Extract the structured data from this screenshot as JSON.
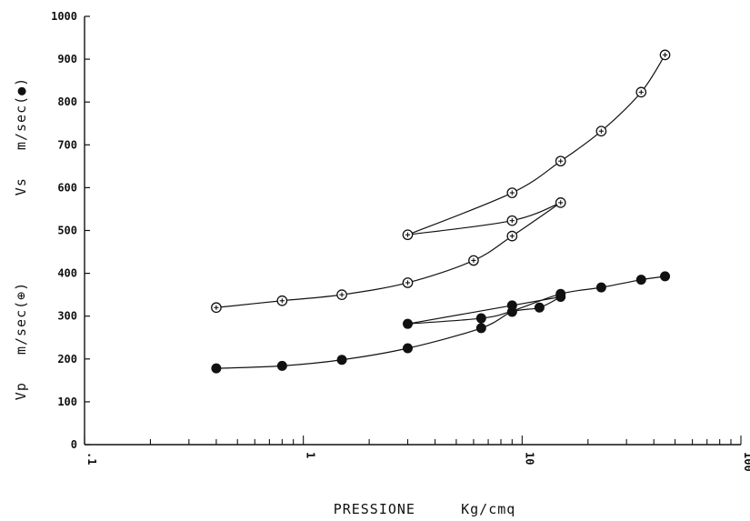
{
  "chart_data": {
    "type": "scatter",
    "title": "",
    "xlabel": "PRESSIONE     Kg/cmq",
    "ylabel_vs": "Vs   m/sec(●)",
    "ylabel_vp": "Vp   m/sec(⊕)",
    "x_scale": "log",
    "xlim": [
      0.1,
      100
    ],
    "ylim": [
      0,
      1000
    ],
    "x_tick_labels": [
      {
        "value": 0.1,
        "label": ".1"
      },
      {
        "value": 1,
        "label": "1"
      },
      {
        "value": 10,
        "label": "10"
      },
      {
        "value": 100,
        "label": "100"
      }
    ],
    "y_ticks": [
      0,
      100,
      200,
      300,
      400,
      500,
      600,
      700,
      800,
      900,
      1000
    ],
    "y_tick_labels": [
      "0",
      "100",
      "200",
      "300",
      "400",
      "500",
      "600",
      "700",
      "800",
      "900",
      "1000"
    ],
    "grid": false,
    "series": [
      {
        "marker": "circle-plus",
        "color": "#111111",
        "points": [
          {
            "x": 0.4,
            "y": 320
          },
          {
            "x": 0.8,
            "y": 336
          },
          {
            "x": 1.5,
            "y": 350
          },
          {
            "x": 3.0,
            "y": 378
          },
          {
            "x": 6.0,
            "y": 430
          },
          {
            "x": 9.0,
            "y": 487
          },
          {
            "x": 15.0,
            "y": 565
          },
          {
            "x": 9.0,
            "y": 523
          },
          {
            "x": 3.0,
            "y": 490
          },
          {
            "x": 9.0,
            "y": 588
          },
          {
            "x": 15.0,
            "y": 662
          },
          {
            "x": 23.0,
            "y": 732
          },
          {
            "x": 35.0,
            "y": 823
          },
          {
            "x": 45.0,
            "y": 910
          }
        ],
        "curves": [
          [
            [
              0.4,
              320
            ],
            [
              0.8,
              336
            ],
            [
              1.5,
              350
            ],
            [
              3.0,
              378
            ],
            [
              6.0,
              430
            ],
            [
              9.0,
              487
            ],
            [
              15.0,
              565
            ]
          ],
          [
            [
              15.0,
              565
            ],
            [
              9.0,
              523
            ],
            [
              3.0,
              490
            ]
          ],
          [
            [
              3.0,
              490
            ],
            [
              9.0,
              588
            ],
            [
              15.0,
              662
            ],
            [
              23.0,
              732
            ],
            [
              35.0,
              823
            ],
            [
              45.0,
              910
            ]
          ]
        ]
      },
      {
        "marker": "filled-circle",
        "color": "#111111",
        "points": [
          {
            "x": 0.4,
            "y": 178
          },
          {
            "x": 0.8,
            "y": 184
          },
          {
            "x": 1.5,
            "y": 198
          },
          {
            "x": 3.0,
            "y": 225
          },
          {
            "x": 6.5,
            "y": 272
          },
          {
            "x": 9.0,
            "y": 310
          },
          {
            "x": 12.0,
            "y": 320
          },
          {
            "x": 15.0,
            "y": 345
          },
          {
            "x": 9.0,
            "y": 325
          },
          {
            "x": 6.5,
            "y": 295
          },
          {
            "x": 3.0,
            "y": 282
          },
          {
            "x": 15.0,
            "y": 352
          },
          {
            "x": 23.0,
            "y": 367
          },
          {
            "x": 35.0,
            "y": 385
          },
          {
            "x": 45.0,
            "y": 393
          }
        ],
        "curves": [
          [
            [
              0.4,
              178
            ],
            [
              0.8,
              184
            ],
            [
              1.5,
              198
            ],
            [
              3.0,
              225
            ],
            [
              6.5,
              272
            ],
            [
              9.0,
              310
            ],
            [
              12.0,
              320
            ],
            [
              15.0,
              345
            ]
          ],
          [
            [
              15.0,
              345
            ],
            [
              9.0,
              325
            ],
            [
              3.0,
              282
            ]
          ],
          [
            [
              3.0,
              282
            ],
            [
              6.5,
              295
            ],
            [
              9.0,
              312
            ],
            [
              15.0,
              352
            ],
            [
              23.0,
              367
            ],
            [
              35.0,
              385
            ],
            [
              45.0,
              393
            ]
          ]
        ]
      }
    ]
  }
}
